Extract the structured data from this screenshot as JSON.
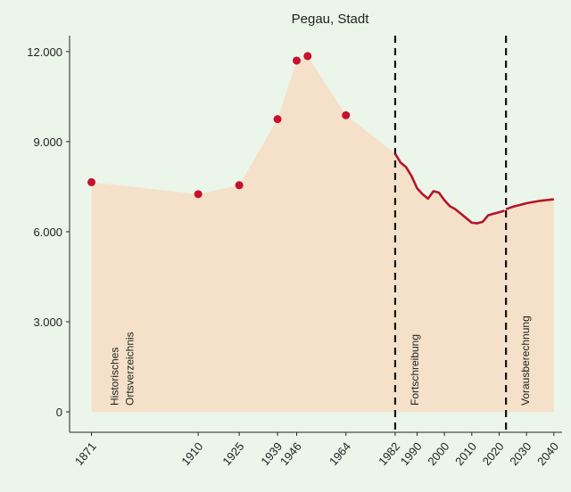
{
  "chart_data": {
    "type": "line",
    "title": "Pegau, Stadt",
    "xlim": [
      1863,
      2043
    ],
    "ylim": [
      -680,
      12530
    ],
    "xticks": [
      1871,
      1910,
      1925,
      1939,
      1946,
      1964,
      1982,
      1990,
      2000,
      2010,
      2020,
      2030,
      2040
    ],
    "yticks": [
      {
        "value": 0,
        "label": "0"
      },
      {
        "value": 3000,
        "label": "3.000"
      },
      {
        "value": 6000,
        "label": "6.000"
      },
      {
        "value": 9000,
        "label": "9.000"
      },
      {
        "value": 12000,
        "label": "12.000"
      }
    ],
    "area_color": "#f5e1c9",
    "series": [
      {
        "style": "points",
        "color": "#c8102e",
        "x": [
          1871,
          1910,
          1925,
          1939,
          1946,
          1950,
          1964
        ],
        "values": [
          7650,
          7250,
          7550,
          9750,
          11700,
          11850,
          9880
        ]
      },
      {
        "style": "line",
        "color": "#b5152b",
        "x": [
          1982,
          1984,
          1986,
          1988,
          1990,
          1992,
          1994,
          1996,
          1998,
          2000,
          2002,
          2004,
          2006,
          2008,
          2010,
          2012,
          2014,
          2016,
          2018,
          2020,
          2022
        ],
        "values": [
          8600,
          8300,
          8150,
          7850,
          7450,
          7250,
          7100,
          7350,
          7300,
          7050,
          6850,
          6750,
          6600,
          6450,
          6300,
          6280,
          6330,
          6550,
          6600,
          6650,
          6700
        ]
      },
      {
        "style": "line",
        "color": "#b5152b",
        "x": [
          2022.5,
          2025,
          2030,
          2035,
          2040
        ],
        "values": [
          6750,
          6830,
          6950,
          7030,
          7080
        ]
      }
    ],
    "boundaries": [
      1982,
      2022.5
    ],
    "sections": [
      {
        "label": [
          "Historisches",
          "Ortsverzeichnis"
        ]
      },
      {
        "label": [
          "Fortschreibung"
        ]
      },
      {
        "label": [
          "Vorausberechnung"
        ]
      }
    ]
  }
}
